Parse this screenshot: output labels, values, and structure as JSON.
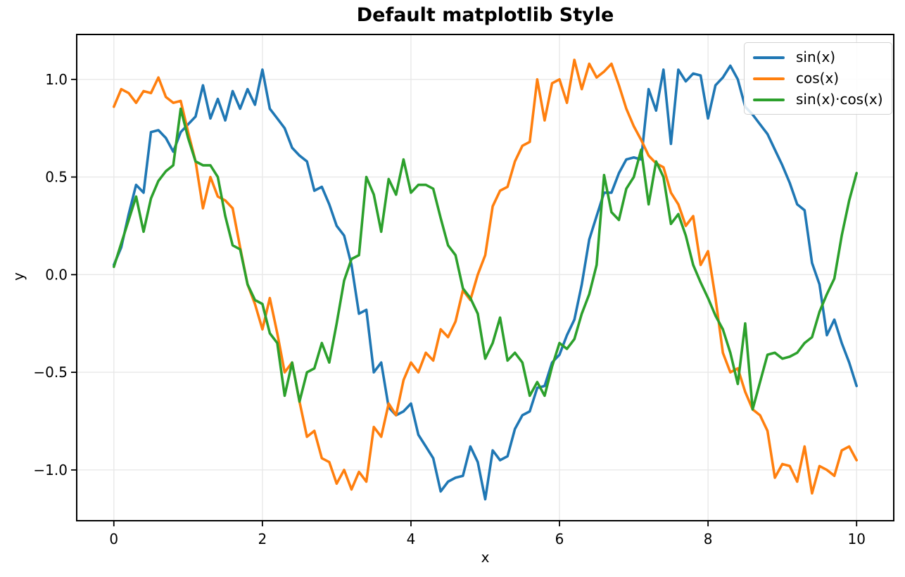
{
  "chart_data": {
    "type": "line",
    "title": "Default matplotlib Style",
    "xlabel": "x",
    "ylabel": "y",
    "xlim": [
      -0.5,
      10.5
    ],
    "ylim": [
      -1.26,
      1.23
    ],
    "grid": true,
    "legend": {
      "position": "upper right"
    },
    "colors": {
      "grid": "#e8e8e8",
      "spine": "#000000",
      "text": "#000000",
      "background": "#ffffff"
    },
    "x_ticks": [
      {
        "value": 0,
        "label": "0"
      },
      {
        "value": 2,
        "label": "2"
      },
      {
        "value": 4,
        "label": "4"
      },
      {
        "value": 6,
        "label": "6"
      },
      {
        "value": 8,
        "label": "8"
      },
      {
        "value": 10,
        "label": "10"
      }
    ],
    "y_ticks": [
      {
        "value": -1.0,
        "label": "−1.0"
      },
      {
        "value": -0.5,
        "label": "−0.5"
      },
      {
        "value": 0.0,
        "label": "0.0"
      },
      {
        "value": 0.5,
        "label": "0.5"
      },
      {
        "value": 1.0,
        "label": "1.0"
      }
    ],
    "x": [
      0,
      0.1,
      0.2,
      0.3,
      0.4,
      0.5,
      0.6,
      0.7,
      0.8,
      0.9,
      1,
      1.1,
      1.2,
      1.3,
      1.4,
      1.5,
      1.6,
      1.7,
      1.8,
      1.9,
      2,
      2.1,
      2.2,
      2.3,
      2.4,
      2.5,
      2.6,
      2.7,
      2.8,
      2.9,
      3,
      3.1,
      3.2,
      3.3,
      3.4,
      3.5,
      3.6,
      3.7,
      3.8,
      3.9,
      4,
      4.1,
      4.2,
      4.3,
      4.4,
      4.5,
      4.6,
      4.7,
      4.8,
      4.9,
      5,
      5.1,
      5.2,
      5.3,
      5.4,
      5.5,
      5.6,
      5.7,
      5.8,
      5.9,
      6,
      6.1,
      6.2,
      6.3,
      6.4,
      6.5,
      6.6,
      6.7,
      6.8,
      6.9,
      7,
      7.1,
      7.2,
      7.3,
      7.4,
      7.5,
      7.6,
      7.7,
      7.8,
      7.9,
      8,
      8.1,
      8.2,
      8.3,
      8.4,
      8.5,
      8.6,
      8.7,
      8.8,
      8.9,
      9,
      9.1,
      9.2,
      9.3,
      9.4,
      9.5,
      9.6,
      9.7,
      9.8,
      9.9,
      10
    ],
    "series": [
      {
        "name": "sin(x)",
        "color": "#1f77b4",
        "values": [
          0.05,
          0.14,
          0.31,
          0.46,
          0.42,
          0.73,
          0.74,
          0.7,
          0.63,
          0.73,
          0.77,
          0.81,
          0.97,
          0.8,
          0.9,
          0.79,
          0.94,
          0.85,
          0.95,
          0.87,
          1.05,
          0.85,
          0.8,
          0.75,
          0.65,
          0.61,
          0.58,
          0.43,
          0.45,
          0.36,
          0.25,
          0.2,
          0.05,
          -0.2,
          -0.18,
          -0.5,
          -0.45,
          -0.68,
          -0.72,
          -0.7,
          -0.66,
          -0.82,
          -0.88,
          -0.94,
          -1.11,
          -1.06,
          -1.04,
          -1.03,
          -0.88,
          -0.96,
          -1.15,
          -0.9,
          -0.95,
          -0.93,
          -0.79,
          -0.72,
          -0.7,
          -0.58,
          -0.57,
          -0.45,
          -0.41,
          -0.31,
          -0.23,
          -0.05,
          0.18,
          0.3,
          0.42,
          0.42,
          0.52,
          0.59,
          0.6,
          0.59,
          0.95,
          0.84,
          1.05,
          0.67,
          1.05,
          0.99,
          1.03,
          1.02,
          0.8,
          0.97,
          1.01,
          1.07,
          1.0,
          0.86,
          0.82,
          0.77,
          0.72,
          0.64,
          0.56,
          0.47,
          0.36,
          0.33,
          0.06,
          -0.05,
          -0.31,
          -0.23,
          -0.35,
          -0.45,
          -0.57
        ]
      },
      {
        "name": "cos(x)",
        "color": "#ff7f0e",
        "values": [
          0.86,
          0.95,
          0.93,
          0.88,
          0.94,
          0.93,
          1.01,
          0.91,
          0.88,
          0.89,
          0.73,
          0.58,
          0.34,
          0.5,
          0.4,
          0.38,
          0.34,
          0.14,
          -0.05,
          -0.15,
          -0.28,
          -0.12,
          -0.3,
          -0.5,
          -0.45,
          -0.65,
          -0.83,
          -0.8,
          -0.94,
          -0.96,
          -1.07,
          -1.0,
          -1.1,
          -1.01,
          -1.06,
          -0.78,
          -0.83,
          -0.66,
          -0.72,
          -0.54,
          -0.45,
          -0.5,
          -0.4,
          -0.44,
          -0.28,
          -0.32,
          -0.24,
          -0.08,
          -0.13,
          0.0,
          0.1,
          0.35,
          0.43,
          0.45,
          0.58,
          0.66,
          0.68,
          1.0,
          0.79,
          0.98,
          1.0,
          0.88,
          1.1,
          0.95,
          1.08,
          1.01,
          1.04,
          1.08,
          0.97,
          0.85,
          0.76,
          0.69,
          0.61,
          0.57,
          0.55,
          0.42,
          0.36,
          0.25,
          0.3,
          0.05,
          0.12,
          -0.12,
          -0.4,
          -0.5,
          -0.48,
          -0.6,
          -0.69,
          -0.72,
          -0.8,
          -1.04,
          -0.97,
          -0.98,
          -1.06,
          -0.88,
          -1.12,
          -0.98,
          -1.0,
          -1.03,
          -0.9,
          -0.88,
          -0.95
        ]
      },
      {
        "name": "sin(x)·cos(x)",
        "color": "#2ca02c",
        "values": [
          0.04,
          0.16,
          0.28,
          0.4,
          0.22,
          0.39,
          0.48,
          0.53,
          0.56,
          0.85,
          0.7,
          0.58,
          0.56,
          0.56,
          0.5,
          0.3,
          0.15,
          0.13,
          -0.05,
          -0.13,
          -0.15,
          -0.3,
          -0.35,
          -0.62,
          -0.45,
          -0.65,
          -0.5,
          -0.48,
          -0.35,
          -0.45,
          -0.25,
          -0.03,
          0.08,
          0.1,
          0.5,
          0.41,
          0.22,
          0.49,
          0.41,
          0.59,
          0.42,
          0.46,
          0.46,
          0.44,
          0.29,
          0.15,
          0.1,
          -0.07,
          -0.12,
          -0.2,
          -0.43,
          -0.35,
          -0.22,
          -0.44,
          -0.4,
          -0.45,
          -0.62,
          -0.55,
          -0.62,
          -0.47,
          -0.35,
          -0.38,
          -0.33,
          -0.2,
          -0.1,
          0.05,
          0.51,
          0.32,
          0.28,
          0.44,
          0.5,
          0.64,
          0.36,
          0.58,
          0.5,
          0.26,
          0.31,
          0.2,
          0.05,
          -0.04,
          -0.12,
          -0.21,
          -0.28,
          -0.4,
          -0.56,
          -0.25,
          -0.69,
          -0.55,
          -0.41,
          -0.4,
          -0.43,
          -0.42,
          -0.4,
          -0.35,
          -0.32,
          -0.19,
          -0.1,
          -0.02,
          0.2,
          0.38,
          0.52
        ]
      }
    ]
  }
}
